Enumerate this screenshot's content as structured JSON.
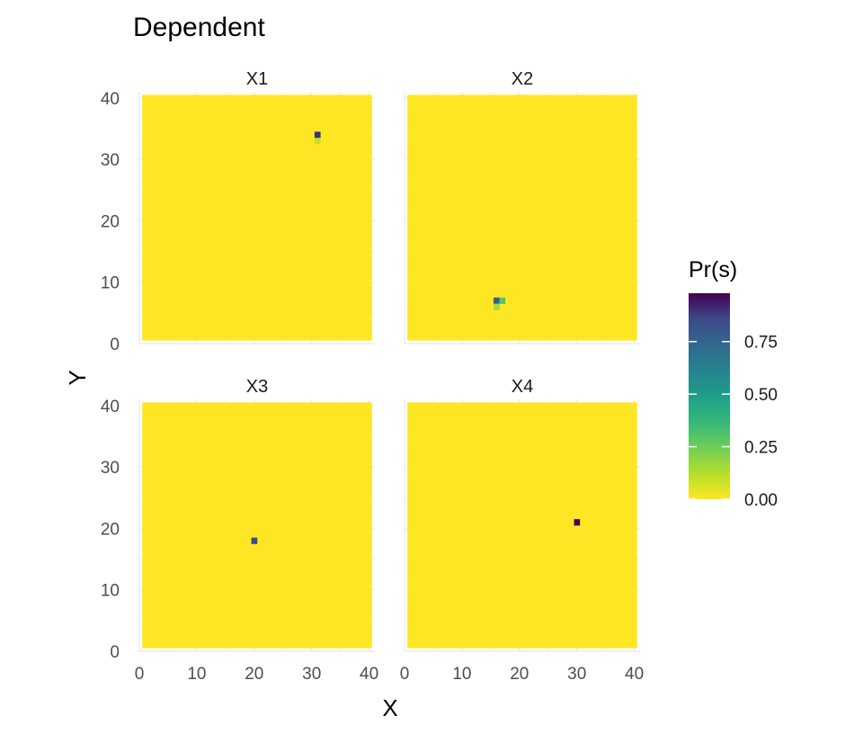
{
  "chart_data": {
    "type": "heatmap",
    "title": "Dependent",
    "xlabel": "X",
    "ylabel": "Y",
    "xlim": [
      0,
      41
    ],
    "ylim": [
      0,
      41
    ],
    "x_ticks": [
      0,
      10,
      20,
      30,
      40
    ],
    "y_ticks": [
      0,
      10,
      20,
      30,
      40
    ],
    "grid": true,
    "background_value": 0.0,
    "legend": {
      "title": "Pr(s)",
      "placement": "right",
      "range": [
        0,
        0.98
      ],
      "ticks": [
        "0.00",
        "0.25",
        "0.50",
        "0.75"
      ],
      "tick_values": [
        0,
        0.25,
        0.5,
        0.75
      ]
    },
    "panels": [
      {
        "name": "X1",
        "cells": [
          {
            "x": 31,
            "y": 34,
            "value": 0.9
          },
          {
            "x": 31,
            "y": 33,
            "value": 0.1
          }
        ]
      },
      {
        "name": "X2",
        "cells": [
          {
            "x": 16,
            "y": 7,
            "value": 0.8
          },
          {
            "x": 17,
            "y": 7,
            "value": 0.3
          },
          {
            "x": 16,
            "y": 6,
            "value": 0.15
          }
        ]
      },
      {
        "name": "X3",
        "cells": [
          {
            "x": 20,
            "y": 18,
            "value": 0.85
          }
        ]
      },
      {
        "name": "X4",
        "cells": [
          {
            "x": 30,
            "y": 21,
            "value": 0.98
          }
        ]
      }
    ]
  }
}
